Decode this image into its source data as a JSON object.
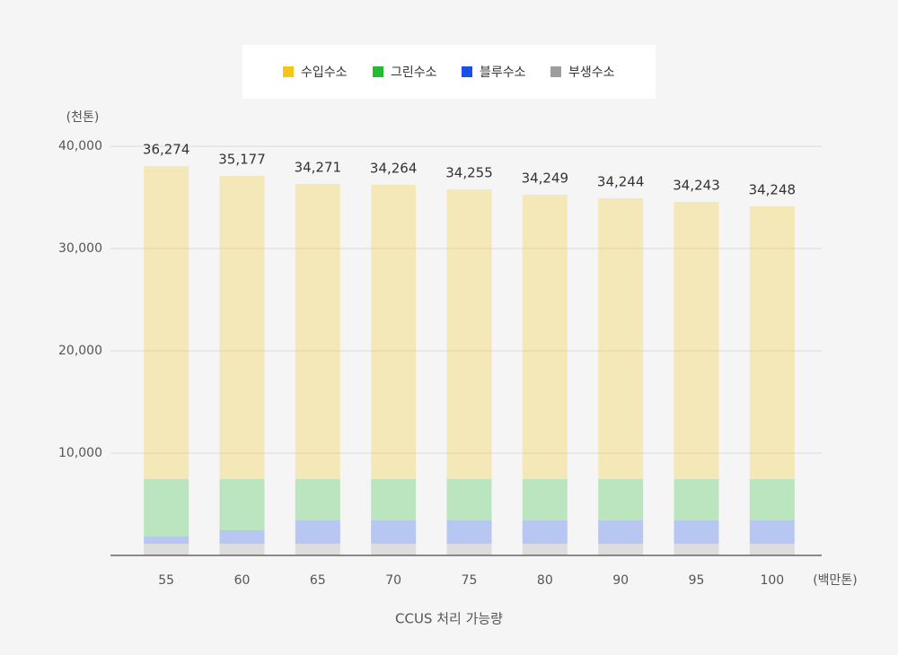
{
  "chart_data": {
    "type": "stacked_bar",
    "y_unit": "(천톤)",
    "x_unit": "(백만톤)",
    "x_label": "CCUS 처리 가능량",
    "categories": [
      "55",
      "60",
      "65",
      "70",
      "75",
      "80",
      "90",
      "95",
      "100"
    ],
    "series": [
      {
        "name": "부생수소",
        "color": "#9e9e9e",
        "values": [
          1140,
          1140,
          1140,
          1140,
          1140,
          1140,
          1140,
          1140,
          1140
        ]
      },
      {
        "name": "블루수소",
        "color": "#1a4fe8",
        "values": [
          700,
          1320,
          2280,
          2280,
          2280,
          2280,
          2280,
          2280,
          2280
        ]
      },
      {
        "name": "그린수소",
        "color": "#22bb33",
        "values": [
          5610,
          5000,
          4040,
          4040,
          4040,
          4040,
          4040,
          4040,
          4040
        ]
      },
      {
        "name": "수입수소",
        "color": "#f5c518",
        "values": [
          30610,
          29650,
          28860,
          28770,
          28330,
          27810,
          27460,
          27110,
          26670
        ]
      }
    ],
    "legend_order": [
      3,
      2,
      1,
      0
    ],
    "annotations": [
      "36,274",
      "35,177",
      "34,271",
      "34,264",
      "34,255",
      "34,249",
      "34,244",
      "34,243",
      "34,248"
    ],
    "ylim": [
      0,
      40000
    ],
    "yticks": [
      {
        "value": 10000,
        "label": "10,000"
      },
      {
        "value": 20000,
        "label": "20,000"
      },
      {
        "value": 30000,
        "label": "30,000"
      },
      {
        "value": 40000,
        "label": "40,000"
      }
    ],
    "grid": true
  }
}
